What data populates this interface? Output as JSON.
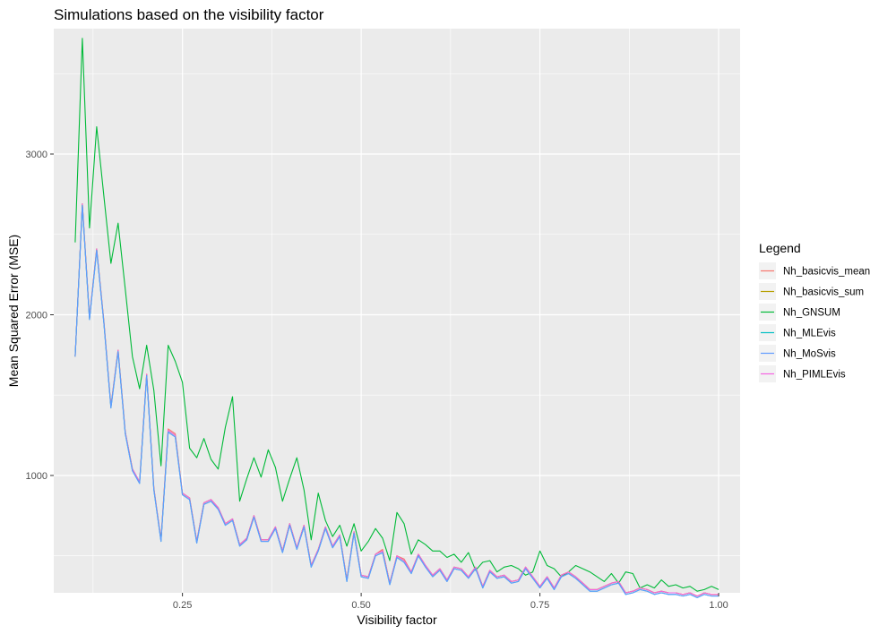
{
  "chart_data": {
    "type": "line",
    "title": "Simulations based on the visibility factor",
    "xlabel": "Visibility factor",
    "ylabel": "Mean Squared Error (MSE)",
    "xlim": [
      0.07,
      1.03
    ],
    "ylim": [
      270,
      3780
    ],
    "x_ticks": [
      0.25,
      0.5,
      0.75,
      1.0
    ],
    "x_tick_labels": [
      "0.25",
      "0.50",
      "0.75",
      "1.00"
    ],
    "y_ticks": [
      1000,
      2000,
      3000
    ],
    "y_tick_labels": [
      "1000",
      "2000",
      "3000"
    ],
    "grid": true,
    "legend": {
      "title": "Legend",
      "position": "right"
    },
    "x": [
      0.1,
      0.11,
      0.12,
      0.13,
      0.14,
      0.15,
      0.16,
      0.17,
      0.18,
      0.19,
      0.2,
      0.21,
      0.22,
      0.23,
      0.24,
      0.25,
      0.26,
      0.27,
      0.28,
      0.29,
      0.3,
      0.31,
      0.32,
      0.33,
      0.34,
      0.35,
      0.36,
      0.37,
      0.38,
      0.39,
      0.4,
      0.41,
      0.42,
      0.43,
      0.44,
      0.45,
      0.46,
      0.47,
      0.48,
      0.49,
      0.5,
      0.51,
      0.52,
      0.53,
      0.54,
      0.55,
      0.56,
      0.57,
      0.58,
      0.59,
      0.6,
      0.61,
      0.62,
      0.63,
      0.64,
      0.65,
      0.66,
      0.67,
      0.68,
      0.69,
      0.7,
      0.71,
      0.72,
      0.73,
      0.74,
      0.75,
      0.76,
      0.77,
      0.78,
      0.79,
      0.8,
      0.81,
      0.82,
      0.83,
      0.84,
      0.85,
      0.86,
      0.87,
      0.88,
      0.89,
      0.9,
      0.91,
      0.92,
      0.93,
      0.94,
      0.95,
      0.96,
      0.97,
      0.98,
      0.99,
      1.0
    ],
    "series": [
      {
        "name": "Nh_basicvis_mean",
        "color": "#F8766D",
        "values": [
          1740,
          2690,
          1980,
          2410,
          1960,
          1430,
          1780,
          1270,
          1040,
          960,
          1630,
          920,
          600,
          1290,
          1260,
          890,
          860,
          590,
          830,
          850,
          800,
          700,
          730,
          570,
          610,
          750,
          600,
          600,
          680,
          530,
          700,
          550,
          690,
          440,
          540,
          680,
          560,
          630,
          350,
          650,
          380,
          370,
          510,
          540,
          330,
          500,
          480,
          400,
          510,
          440,
          380,
          420,
          350,
          430,
          420,
          370,
          430,
          310,
          410,
          370,
          380,
          340,
          350,
          430,
          370,
          310,
          370,
          300,
          380,
          400,
          370,
          330,
          290,
          290,
          310,
          330,
          340,
          270,
          280,
          300,
          290,
          270,
          280,
          270,
          270,
          260,
          270,
          250,
          270,
          260,
          260
        ]
      },
      {
        "name": "Nh_basicvis_sum",
        "color": "#B79F00",
        "values": [
          1740,
          2690,
          1980,
          2410,
          1960,
          1430,
          1780,
          1270,
          1040,
          960,
          1630,
          920,
          600,
          1280,
          1250,
          890,
          860,
          590,
          830,
          850,
          800,
          700,
          730,
          570,
          610,
          750,
          600,
          600,
          680,
          530,
          700,
          550,
          690,
          440,
          540,
          680,
          560,
          630,
          350,
          650,
          380,
          370,
          510,
          530,
          330,
          500,
          470,
          400,
          510,
          440,
          380,
          420,
          350,
          430,
          420,
          370,
          430,
          310,
          410,
          370,
          380,
          340,
          350,
          430,
          370,
          310,
          370,
          300,
          380,
          400,
          370,
          330,
          290,
          290,
          310,
          330,
          340,
          270,
          280,
          300,
          290,
          270,
          280,
          270,
          270,
          260,
          270,
          250,
          270,
          260,
          260
        ]
      },
      {
        "name": "Nh_GNSUM",
        "color": "#00BA38",
        "values": [
          2450,
          3720,
          2540,
          3170,
          2740,
          2320,
          2570,
          2160,
          1740,
          1540,
          1810,
          1530,
          1060,
          1810,
          1710,
          1580,
          1170,
          1110,
          1230,
          1100,
          1040,
          1300,
          1490,
          840,
          980,
          1110,
          990,
          1160,
          1050,
          840,
          980,
          1110,
          910,
          600,
          890,
          720,
          620,
          690,
          560,
          700,
          530,
          590,
          670,
          610,
          470,
          770,
          700,
          510,
          600,
          570,
          530,
          530,
          490,
          510,
          460,
          520,
          410,
          460,
          470,
          400,
          430,
          440,
          420,
          380,
          400,
          530,
          440,
          420,
          370,
          400,
          440,
          420,
          400,
          370,
          340,
          390,
          330,
          400,
          390,
          300,
          320,
          300,
          350,
          310,
          320,
          300,
          310,
          280,
          290,
          310,
          290
        ]
      },
      {
        "name": "Nh_MLEvis",
        "color": "#00BFC4",
        "values": [
          1740,
          2680,
          1970,
          2400,
          1950,
          1420,
          1770,
          1260,
          1030,
          950,
          1620,
          910,
          590,
          1270,
          1240,
          880,
          850,
          580,
          820,
          840,
          790,
          690,
          720,
          560,
          600,
          740,
          590,
          590,
          670,
          520,
          690,
          540,
          680,
          430,
          530,
          670,
          550,
          620,
          340,
          640,
          370,
          360,
          500,
          520,
          320,
          490,
          460,
          390,
          500,
          430,
          370,
          410,
          340,
          420,
          410,
          360,
          420,
          300,
          400,
          360,
          370,
          330,
          340,
          420,
          360,
          300,
          360,
          290,
          370,
          390,
          360,
          320,
          280,
          280,
          300,
          320,
          330,
          260,
          270,
          290,
          280,
          260,
          270,
          260,
          260,
          250,
          260,
          240,
          260,
          250,
          250
        ]
      },
      {
        "name": "Nh_MoSvis",
        "color": "#619CFF",
        "values": [
          1740,
          2680,
          1970,
          2400,
          1950,
          1420,
          1770,
          1260,
          1030,
          950,
          1620,
          910,
          590,
          1270,
          1240,
          880,
          850,
          580,
          820,
          840,
          790,
          690,
          720,
          560,
          600,
          740,
          590,
          590,
          670,
          520,
          690,
          540,
          680,
          430,
          530,
          670,
          550,
          620,
          340,
          640,
          370,
          360,
          500,
          520,
          320,
          490,
          460,
          390,
          500,
          430,
          370,
          410,
          340,
          420,
          410,
          360,
          420,
          300,
          400,
          360,
          370,
          330,
          340,
          420,
          360,
          300,
          360,
          290,
          370,
          390,
          360,
          320,
          280,
          280,
          300,
          320,
          330,
          260,
          270,
          290,
          280,
          260,
          270,
          260,
          260,
          250,
          260,
          240,
          260,
          250,
          250
        ]
      },
      {
        "name": "Nh_PIMLEvis",
        "color": "#F564E3",
        "values": [
          1740,
          2690,
          1980,
          2410,
          1960,
          1430,
          1780,
          1270,
          1040,
          960,
          1630,
          920,
          600,
          1280,
          1250,
          890,
          860,
          590,
          830,
          850,
          800,
          700,
          730,
          570,
          610,
          750,
          600,
          600,
          680,
          530,
          700,
          550,
          690,
          440,
          540,
          680,
          560,
          630,
          350,
          650,
          380,
          370,
          510,
          530,
          330,
          500,
          470,
          400,
          510,
          440,
          380,
          420,
          350,
          430,
          420,
          370,
          430,
          310,
          410,
          370,
          380,
          340,
          350,
          430,
          370,
          310,
          370,
          300,
          380,
          400,
          370,
          330,
          290,
          290,
          310,
          330,
          340,
          270,
          280,
          300,
          290,
          270,
          280,
          270,
          270,
          260,
          270,
          250,
          270,
          260,
          260
        ]
      }
    ]
  }
}
